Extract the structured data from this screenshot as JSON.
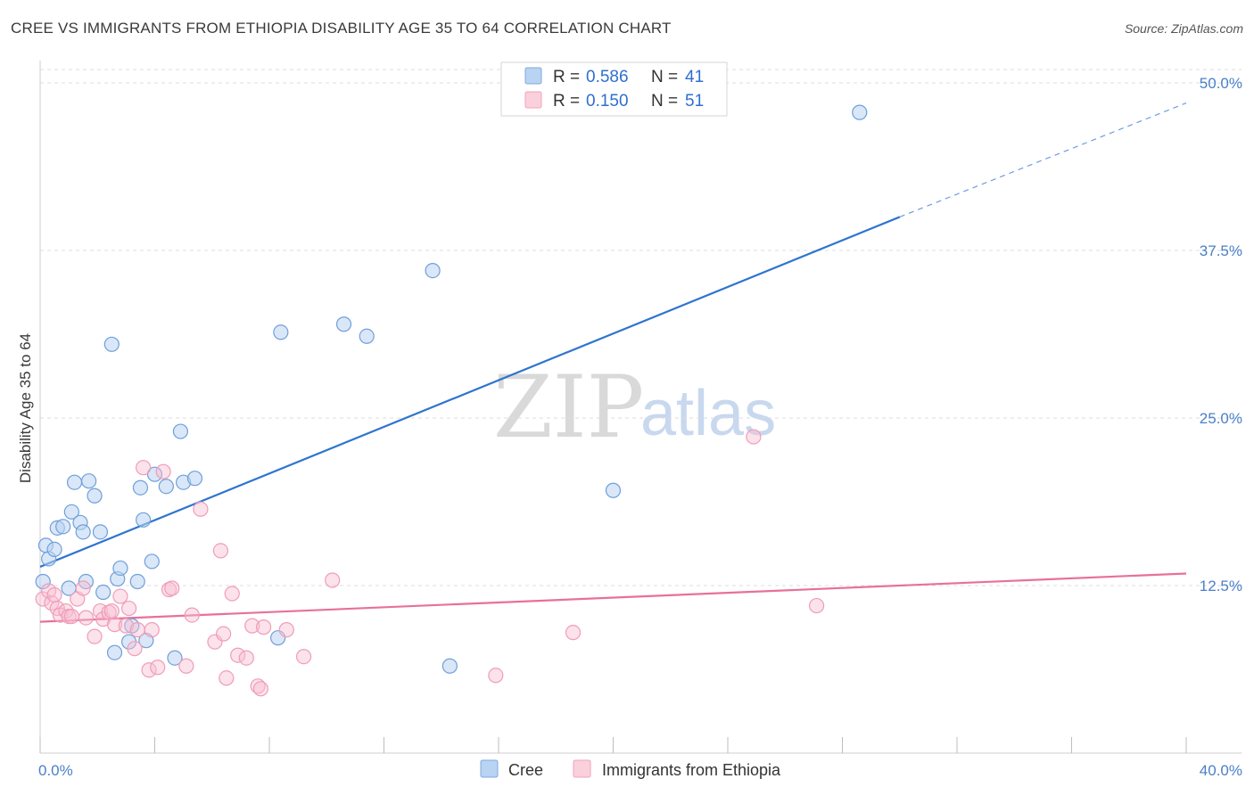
{
  "title": "CREE VS IMMIGRANTS FROM ETHIOPIA DISABILITY AGE 35 TO 64 CORRELATION CHART",
  "source": "Source: ZipAtlas.com",
  "watermark": {
    "zip": "ZIP",
    "atlas": "atlas"
  },
  "colors": {
    "cree": "#7fb0e8",
    "cree_line": "#2f74d0",
    "eth": "#f2a7bf",
    "eth_line": "#e8709a"
  },
  "legend": {
    "cree_r_label": "R = ",
    "cree_r": "0.586",
    "cree_n_label": "N = ",
    "cree_n": "41",
    "eth_r_label": "R = ",
    "eth_r": "0.150",
    "eth_n_label": "N = ",
    "eth_n": "51"
  },
  "bottom_legend": {
    "cree": "Cree",
    "eth": "Immigrants from Ethiopia"
  },
  "chart_data": {
    "type": "scatter",
    "title": "CREE VS IMMIGRANTS FROM ETHIOPIA DISABILITY AGE 35 TO 64 CORRELATION CHART",
    "xlabel": "",
    "ylabel": "Disability Age 35 to 64",
    "xlim": [
      0,
      40
    ],
    "ylim": [
      0,
      51
    ],
    "x_tick_labels": [
      "0.0%",
      "40.0%"
    ],
    "y_ticks": [
      12.5,
      25.0,
      37.5,
      50.0
    ],
    "y_tick_labels": [
      "12.5%",
      "25.0%",
      "37.5%",
      "50.0%"
    ],
    "series": [
      {
        "name": "Cree",
        "points": [
          [
            0.1,
            12.8
          ],
          [
            0.2,
            15.5
          ],
          [
            0.3,
            14.5
          ],
          [
            0.5,
            15.2
          ],
          [
            0.6,
            16.8
          ],
          [
            0.8,
            16.9
          ],
          [
            1.0,
            12.3
          ],
          [
            1.1,
            18.0
          ],
          [
            1.2,
            20.2
          ],
          [
            1.4,
            17.2
          ],
          [
            1.5,
            16.5
          ],
          [
            1.6,
            12.8
          ],
          [
            1.7,
            20.3
          ],
          [
            1.9,
            19.2
          ],
          [
            2.1,
            16.5
          ],
          [
            2.2,
            12.0
          ],
          [
            2.5,
            30.5
          ],
          [
            2.6,
            7.5
          ],
          [
            2.7,
            13.0
          ],
          [
            2.8,
            13.8
          ],
          [
            3.1,
            8.3
          ],
          [
            3.2,
            9.5
          ],
          [
            3.4,
            12.8
          ],
          [
            3.5,
            19.8
          ],
          [
            3.6,
            17.4
          ],
          [
            3.7,
            8.4
          ],
          [
            3.9,
            14.3
          ],
          [
            4.0,
            20.8
          ],
          [
            4.4,
            19.9
          ],
          [
            4.7,
            7.1
          ],
          [
            4.9,
            24.0
          ],
          [
            5.0,
            20.2
          ],
          [
            5.4,
            20.5
          ],
          [
            8.3,
            8.6
          ],
          [
            8.4,
            31.4
          ],
          [
            10.6,
            32.0
          ],
          [
            11.4,
            31.1
          ],
          [
            13.7,
            36.0
          ],
          [
            14.3,
            6.5
          ],
          [
            20.0,
            19.6
          ],
          [
            28.6,
            47.8
          ]
        ]
      },
      {
        "name": "Immigrants from Ethiopia",
        "points": [
          [
            0.1,
            11.5
          ],
          [
            0.3,
            12.1
          ],
          [
            0.4,
            11.2
          ],
          [
            0.5,
            11.8
          ],
          [
            0.6,
            10.8
          ],
          [
            0.7,
            10.3
          ],
          [
            0.9,
            10.6
          ],
          [
            1.0,
            10.2
          ],
          [
            1.1,
            10.2
          ],
          [
            1.3,
            11.5
          ],
          [
            1.5,
            12.3
          ],
          [
            1.6,
            10.1
          ],
          [
            1.9,
            8.7
          ],
          [
            2.1,
            10.6
          ],
          [
            2.2,
            10.0
          ],
          [
            2.4,
            10.5
          ],
          [
            2.5,
            10.6
          ],
          [
            2.6,
            9.6
          ],
          [
            2.8,
            11.7
          ],
          [
            3.0,
            9.5
          ],
          [
            3.1,
            10.8
          ],
          [
            3.3,
            7.8
          ],
          [
            3.4,
            9.2
          ],
          [
            3.6,
            21.3
          ],
          [
            3.8,
            6.2
          ],
          [
            3.9,
            9.2
          ],
          [
            4.1,
            6.4
          ],
          [
            4.3,
            21.0
          ],
          [
            4.5,
            12.2
          ],
          [
            4.6,
            12.3
          ],
          [
            5.1,
            6.5
          ],
          [
            5.3,
            10.3
          ],
          [
            5.6,
            18.2
          ],
          [
            6.1,
            8.3
          ],
          [
            6.3,
            15.1
          ],
          [
            6.4,
            8.9
          ],
          [
            6.5,
            5.6
          ],
          [
            6.7,
            11.9
          ],
          [
            6.9,
            7.3
          ],
          [
            7.2,
            7.1
          ],
          [
            7.4,
            9.5
          ],
          [
            7.6,
            5.0
          ],
          [
            7.7,
            4.8
          ],
          [
            7.8,
            9.4
          ],
          [
            8.6,
            9.2
          ],
          [
            9.2,
            7.2
          ],
          [
            10.2,
            12.9
          ],
          [
            15.9,
            5.8
          ],
          [
            18.6,
            9.0
          ],
          [
            24.9,
            23.6
          ],
          [
            27.1,
            11.0
          ]
        ]
      }
    ],
    "trendlines": [
      {
        "name": "Cree",
        "from": [
          0,
          13.9
        ],
        "solid_to": [
          30,
          40.0
        ],
        "dashed_to": [
          40,
          48.5
        ]
      },
      {
        "name": "Immigrants from Ethiopia",
        "from": [
          0,
          9.8
        ],
        "to": [
          40,
          13.4
        ]
      }
    ],
    "legend": [
      {
        "name": "Cree",
        "R": "0.586",
        "N": "41"
      },
      {
        "name": "Immigrants from Ethiopia",
        "R": "0.150",
        "N": "51"
      }
    ]
  }
}
